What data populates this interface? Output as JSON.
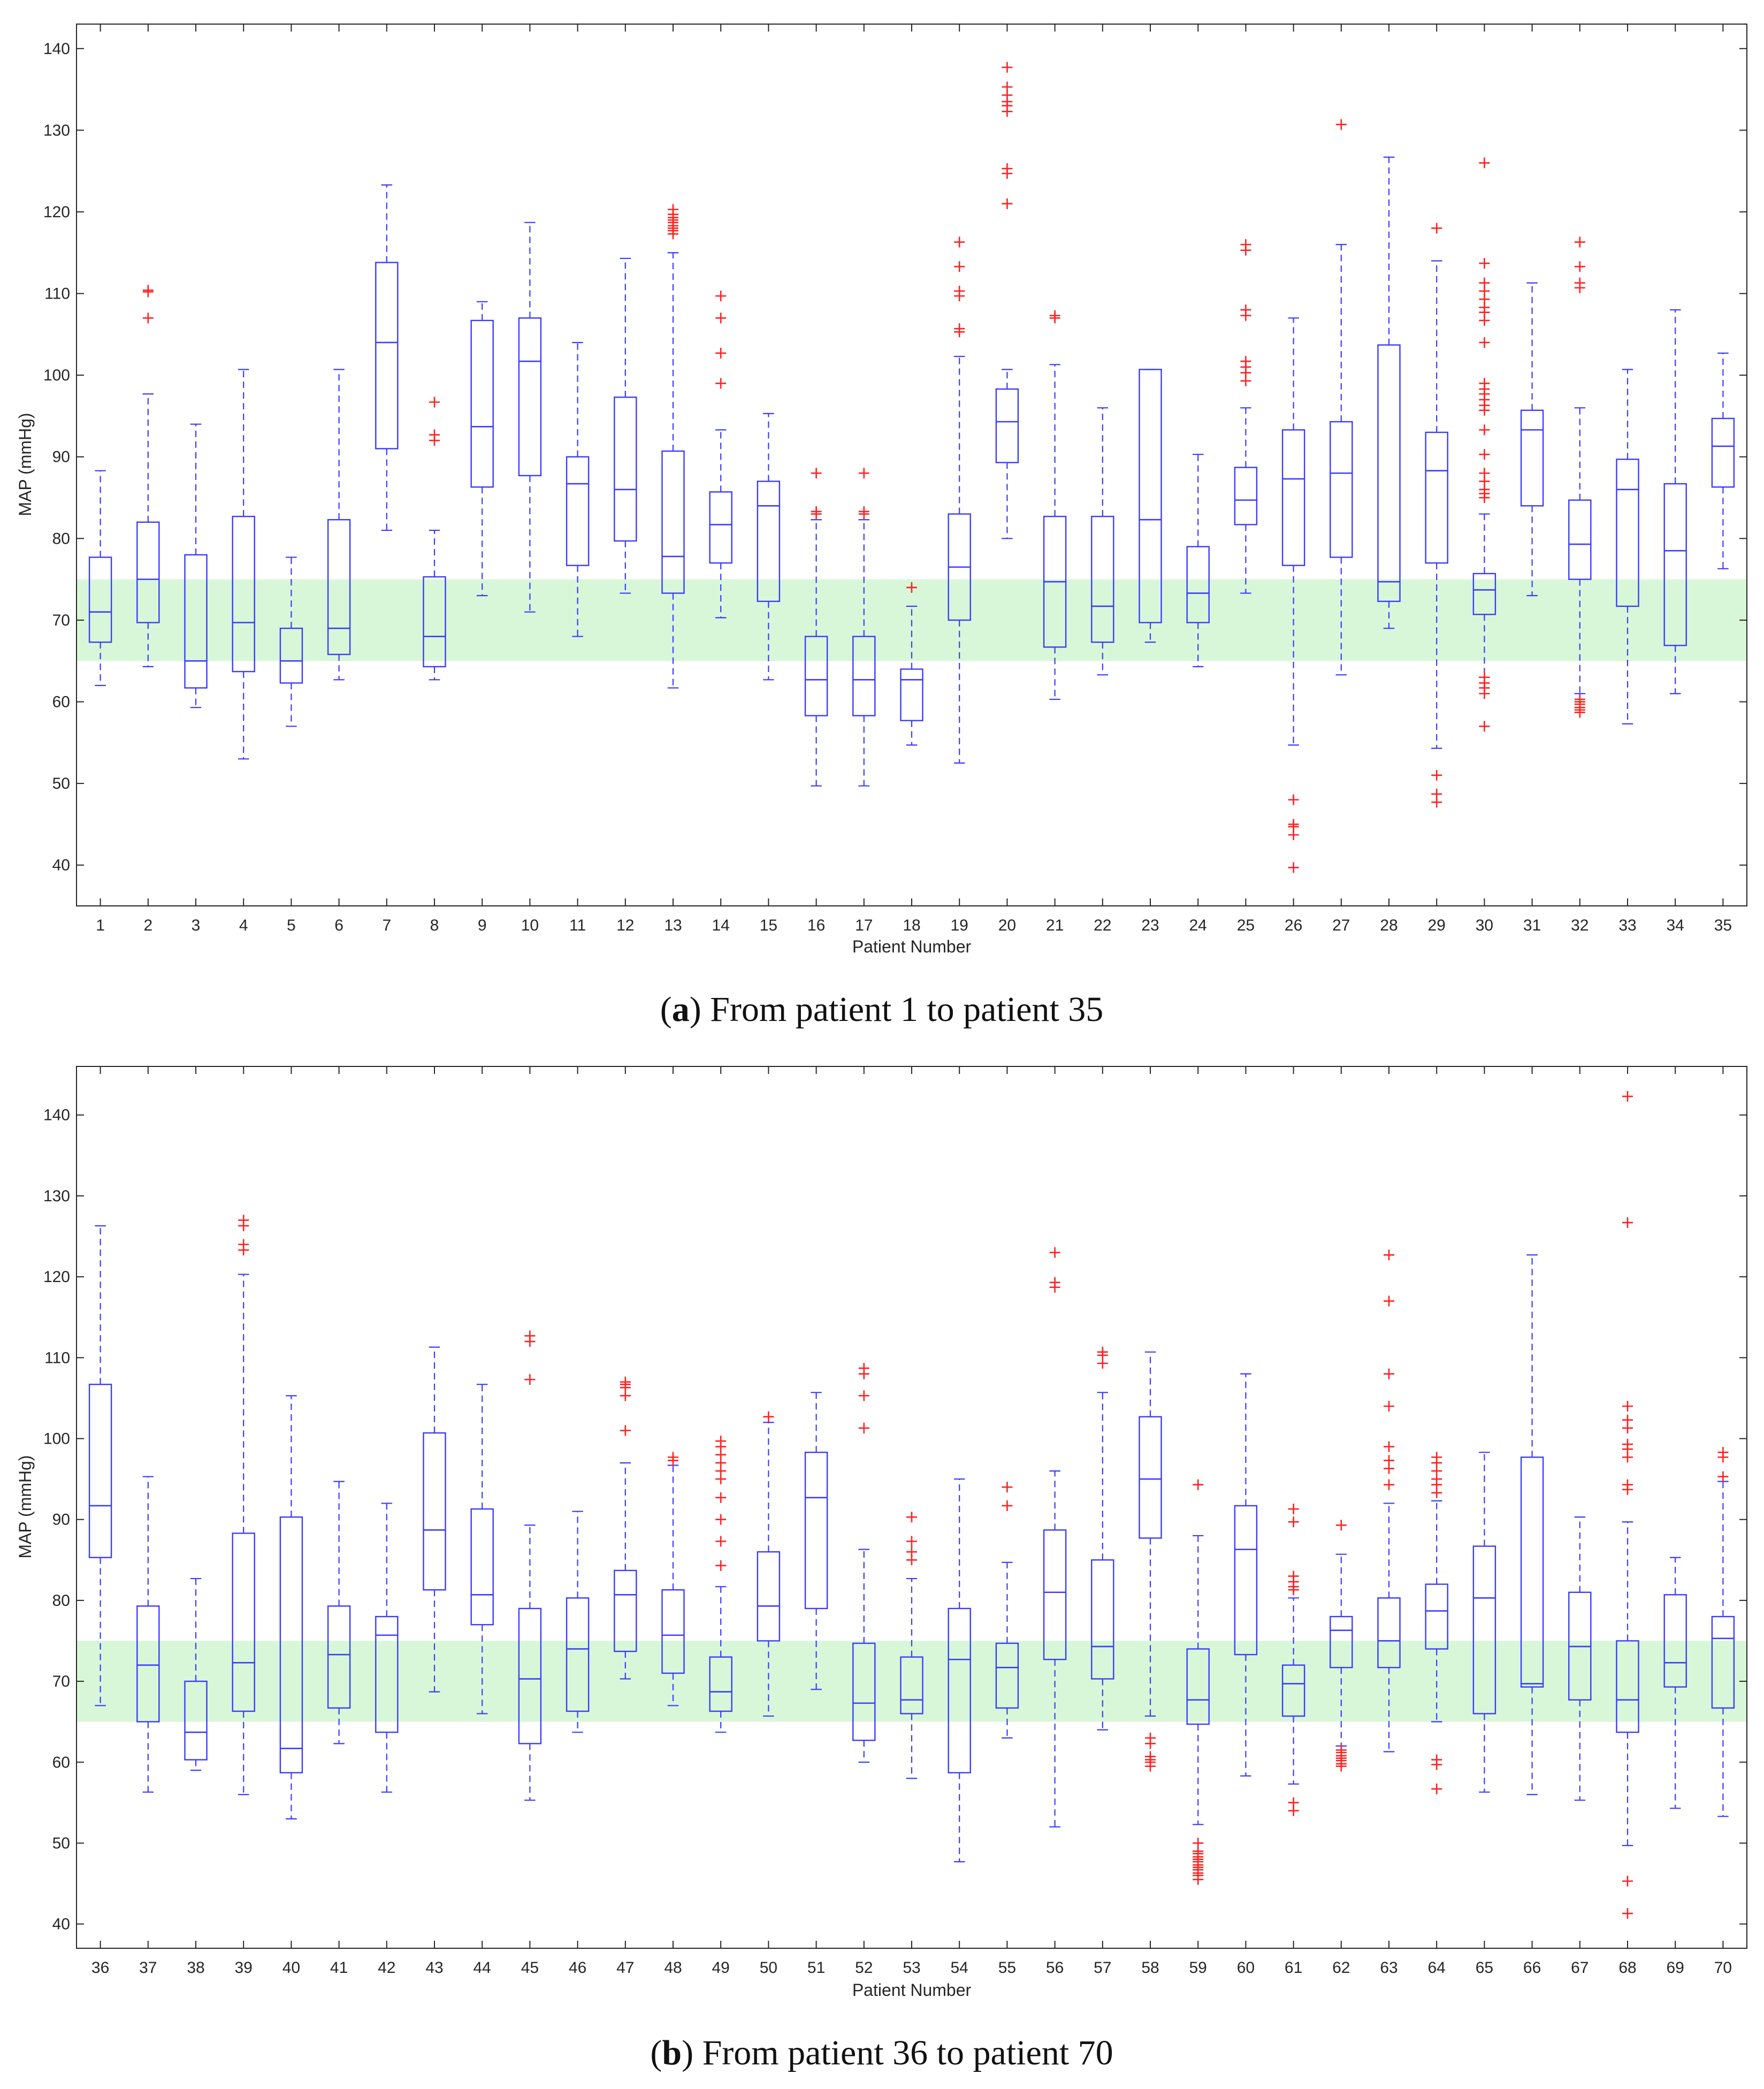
{
  "chart_data": [
    {
      "type": "boxplot",
      "caption_letter": "a",
      "caption_text": "From patient 1 to patient 35",
      "xlabel": "Patient Number",
      "ylabel": "MAP (mmHg)",
      "ylim": [
        35,
        143
      ],
      "yticks": [
        40,
        50,
        60,
        70,
        80,
        90,
        100,
        110,
        120,
        130,
        140
      ],
      "target_band": [
        65,
        75
      ],
      "colors": {
        "box": "#3b3bff",
        "outlier": "#ff2020",
        "band": "#d8f7d8",
        "axis": "#262626"
      },
      "boxes": [
        {
          "label": "1",
          "lo": 62,
          "q1": 67.3,
          "med": 71,
          "q3": 77.7,
          "hi": 88.3,
          "outliers": []
        },
        {
          "label": "2",
          "lo": 64.3,
          "q1": 69.7,
          "med": 75,
          "q3": 82,
          "hi": 97.7,
          "outliers": [
            107,
            110.2,
            110.4
          ]
        },
        {
          "label": "3",
          "lo": 59.3,
          "q1": 61.7,
          "med": 65,
          "q3": 78,
          "hi": 94,
          "outliers": []
        },
        {
          "label": "4",
          "lo": 53,
          "q1": 63.7,
          "med": 69.7,
          "q3": 82.7,
          "hi": 100.7,
          "outliers": []
        },
        {
          "label": "5",
          "lo": 57,
          "q1": 62.3,
          "med": 65,
          "q3": 69,
          "hi": 77.7,
          "outliers": []
        },
        {
          "label": "6",
          "lo": 62.7,
          "q1": 65.8,
          "med": 69,
          "q3": 82.3,
          "hi": 100.7,
          "outliers": []
        },
        {
          "label": "7",
          "lo": 81,
          "q1": 91,
          "med": 104,
          "q3": 113.8,
          "hi": 123.3,
          "outliers": []
        },
        {
          "label": "8",
          "lo": 62.7,
          "q1": 64.3,
          "med": 68,
          "q3": 75.3,
          "hi": 81,
          "outliers": [
            92,
            92.7,
            96.7
          ]
        },
        {
          "label": "9",
          "lo": 73,
          "q1": 86.3,
          "med": 93.7,
          "q3": 106.7,
          "hi": 109,
          "outliers": []
        },
        {
          "label": "10",
          "lo": 71,
          "q1": 87.7,
          "med": 101.7,
          "q3": 107,
          "hi": 118.7,
          "outliers": []
        },
        {
          "label": "11",
          "lo": 68,
          "q1": 76.7,
          "med": 86.7,
          "q3": 90,
          "hi": 104,
          "outliers": []
        },
        {
          "label": "12",
          "lo": 73.3,
          "q1": 79.7,
          "med": 86,
          "q3": 97.3,
          "hi": 114.3,
          "outliers": []
        },
        {
          "label": "13",
          "lo": 61.7,
          "q1": 73.3,
          "med": 77.8,
          "q3": 90.7,
          "hi": 115,
          "outliers": [
            117.3,
            117.7,
            118,
            118.3,
            118.7,
            119,
            119.3,
            119.7,
            120.3
          ]
        },
        {
          "label": "14",
          "lo": 70.3,
          "q1": 77,
          "med": 81.7,
          "q3": 85.7,
          "hi": 93.3,
          "outliers": [
            99,
            102.7,
            107,
            109.7
          ]
        },
        {
          "label": "15",
          "lo": 62.7,
          "q1": 72.3,
          "med": 84,
          "q3": 87,
          "hi": 95.3,
          "outliers": []
        },
        {
          "label": "16",
          "lo": 49.7,
          "q1": 58.3,
          "med": 62.7,
          "q3": 68,
          "hi": 82.3,
          "outliers": [
            83,
            83.3,
            88
          ]
        },
        {
          "label": "17",
          "lo": 49.7,
          "q1": 58.3,
          "med": 62.7,
          "q3": 68,
          "hi": 82.3,
          "outliers": [
            83,
            83.3,
            88
          ]
        },
        {
          "label": "18",
          "lo": 54.7,
          "q1": 57.7,
          "med": 62.7,
          "q3": 64,
          "hi": 71.7,
          "outliers": [
            74
          ]
        },
        {
          "label": "19",
          "lo": 52.5,
          "q1": 70,
          "med": 76.5,
          "q3": 83,
          "hi": 102.3,
          "outliers": [
            105.3,
            105.7,
            109.7,
            110.3,
            113.3,
            116.3
          ]
        },
        {
          "label": "20",
          "lo": 80,
          "q1": 89.3,
          "med": 94.3,
          "q3": 98.3,
          "hi": 100.7,
          "outliers": [
            121,
            124.7,
            125.3,
            132.3,
            133,
            133.5,
            134.3,
            135.3,
            137.7
          ]
        },
        {
          "label": "21",
          "lo": 60.3,
          "q1": 66.7,
          "med": 74.7,
          "q3": 82.7,
          "hi": 101.3,
          "outliers": [
            107,
            107.3
          ]
        },
        {
          "label": "22",
          "lo": 63.3,
          "q1": 67.3,
          "med": 71.7,
          "q3": 82.7,
          "hi": 96,
          "outliers": []
        },
        {
          "label": "23",
          "lo": 67.3,
          "q1": 69.7,
          "med": 82.3,
          "q3": 100.7,
          "hi": 100.7,
          "outliers": []
        },
        {
          "label": "24",
          "lo": 64.3,
          "q1": 69.7,
          "med": 73.3,
          "q3": 79,
          "hi": 90.3,
          "outliers": []
        },
        {
          "label": "25",
          "lo": 73.3,
          "q1": 81.7,
          "med": 84.7,
          "q3": 88.7,
          "hi": 96,
          "outliers": [
            99.3,
            100.3,
            101,
            101.7,
            107.3,
            108,
            115.3,
            116
          ]
        },
        {
          "label": "26",
          "lo": 54.7,
          "q1": 76.7,
          "med": 87.3,
          "q3": 93.3,
          "hi": 107,
          "outliers": [
            39.7,
            43.7,
            44.7,
            45,
            48
          ]
        },
        {
          "label": "27",
          "lo": 63.3,
          "q1": 77.7,
          "med": 88,
          "q3": 94.3,
          "hi": 116,
          "outliers": [
            130.7
          ]
        },
        {
          "label": "28",
          "lo": 69,
          "q1": 72.3,
          "med": 74.7,
          "q3": 103.7,
          "hi": 126.7,
          "outliers": []
        },
        {
          "label": "29",
          "lo": 54.3,
          "q1": 77,
          "med": 88.3,
          "q3": 93,
          "hi": 114,
          "outliers": [
            47.7,
            48.7,
            51,
            118
          ]
        },
        {
          "label": "30",
          "lo": 63,
          "q1": 70.7,
          "med": 73.7,
          "q3": 75.7,
          "hi": 83,
          "outliers": [
            57,
            61,
            61.7,
            62.3,
            63,
            85,
            85.5,
            86,
            87,
            88,
            90.3,
            93.3,
            95.7,
            96.3,
            97,
            97.7,
            98.3,
            99,
            104,
            106.7,
            107.7,
            108.3,
            109.3,
            110.3,
            111.3,
            113.7,
            126
          ]
        },
        {
          "label": "31",
          "lo": 73,
          "q1": 84,
          "med": 93.3,
          "q3": 95.7,
          "hi": 111.3,
          "outliers": []
        },
        {
          "label": "32",
          "lo": 61,
          "q1": 75,
          "med": 79.3,
          "q3": 84.7,
          "hi": 96,
          "outliers": [
            58.7,
            59,
            59.3,
            59.7,
            60,
            60.3,
            110.7,
            111.3,
            113.3,
            116.3
          ]
        },
        {
          "label": "33",
          "lo": 57.3,
          "q1": 71.7,
          "med": 86,
          "q3": 89.7,
          "hi": 100.7,
          "outliers": []
        },
        {
          "label": "34",
          "lo": 61,
          "q1": 66.9,
          "med": 78.5,
          "q3": 86.7,
          "hi": 108,
          "outliers": []
        },
        {
          "label": "35",
          "lo": 76.3,
          "q1": 86.3,
          "med": 91.3,
          "q3": 94.7,
          "hi": 102.7,
          "outliers": []
        }
      ]
    },
    {
      "type": "boxplot",
      "caption_letter": "b",
      "caption_text": "From patient 36 to patient 70",
      "xlabel": "Patient Number",
      "ylabel": "MAP (mmHg)",
      "ylim": [
        37,
        146
      ],
      "yticks": [
        40,
        50,
        60,
        70,
        80,
        90,
        100,
        110,
        120,
        130,
        140
      ],
      "target_band": [
        65,
        75
      ],
      "colors": {
        "box": "#3b3bff",
        "outlier": "#ff2020",
        "band": "#d8f7d8",
        "axis": "#262626"
      },
      "boxes": [
        {
          "label": "36",
          "lo": 67,
          "q1": 85.3,
          "med": 91.7,
          "q3": 106.7,
          "hi": 126.3,
          "outliers": []
        },
        {
          "label": "37",
          "lo": 56.3,
          "q1": 65,
          "med": 72,
          "q3": 79.3,
          "hi": 95.3,
          "outliers": []
        },
        {
          "label": "38",
          "lo": 59,
          "q1": 60.3,
          "med": 63.7,
          "q3": 70,
          "hi": 82.7,
          "outliers": []
        },
        {
          "label": "39",
          "lo": 56,
          "q1": 66.3,
          "med": 72.3,
          "q3": 88.3,
          "hi": 120.3,
          "outliers": [
            123.3,
            124,
            126.3,
            127
          ]
        },
        {
          "label": "40",
          "lo": 53,
          "q1": 58.7,
          "med": 61.7,
          "q3": 90.3,
          "hi": 105.3,
          "outliers": []
        },
        {
          "label": "41",
          "lo": 62.3,
          "q1": 66.7,
          "med": 73.3,
          "q3": 79.3,
          "hi": 94.7,
          "outliers": []
        },
        {
          "label": "42",
          "lo": 56.3,
          "q1": 63.7,
          "med": 75.7,
          "q3": 78,
          "hi": 92,
          "outliers": []
        },
        {
          "label": "43",
          "lo": 68.7,
          "q1": 81.3,
          "med": 88.7,
          "q3": 100.7,
          "hi": 111.3,
          "outliers": []
        },
        {
          "label": "44",
          "lo": 66,
          "q1": 77,
          "med": 80.7,
          "q3": 91.3,
          "hi": 106.7,
          "outliers": []
        },
        {
          "label": "45",
          "lo": 55.3,
          "q1": 62.3,
          "med": 70.3,
          "q3": 79,
          "hi": 89.3,
          "outliers": [
            107.3,
            112,
            112.7
          ]
        },
        {
          "label": "46",
          "lo": 63.7,
          "q1": 66.3,
          "med": 74,
          "q3": 80.3,
          "hi": 91,
          "outliers": []
        },
        {
          "label": "47",
          "lo": 70.3,
          "q1": 73.7,
          "med": 80.7,
          "q3": 83.7,
          "hi": 97,
          "outliers": [
            101,
            105.3,
            106.3,
            106.7,
            107
          ]
        },
        {
          "label": "48",
          "lo": 67,
          "q1": 71,
          "med": 75.7,
          "q3": 81.3,
          "hi": 96.7,
          "outliers": [
            97.3,
            97.7
          ]
        },
        {
          "label": "49",
          "lo": 63.7,
          "q1": 66.3,
          "med": 68.7,
          "q3": 73,
          "hi": 81.7,
          "outliers": [
            84.3,
            87.3,
            90,
            92.7,
            95,
            96,
            97,
            98,
            99,
            99.7
          ]
        },
        {
          "label": "50",
          "lo": 65.7,
          "q1": 75,
          "med": 79.3,
          "q3": 86,
          "hi": 102,
          "outliers": [
            102.7
          ]
        },
        {
          "label": "51",
          "lo": 69,
          "q1": 79,
          "med": 92.7,
          "q3": 98.3,
          "hi": 105.7,
          "outliers": []
        },
        {
          "label": "52",
          "lo": 60,
          "q1": 62.7,
          "med": 67.3,
          "q3": 74.7,
          "hi": 86.3,
          "outliers": [
            101.3,
            105.3,
            108,
            108.7
          ]
        },
        {
          "label": "53",
          "lo": 58,
          "q1": 66,
          "med": 67.7,
          "q3": 73,
          "hi": 82.7,
          "outliers": [
            85,
            86,
            87.3,
            90.3
          ]
        },
        {
          "label": "54",
          "lo": 47.7,
          "q1": 58.7,
          "med": 72.7,
          "q3": 79,
          "hi": 95,
          "outliers": []
        },
        {
          "label": "55",
          "lo": 63,
          "q1": 66.7,
          "med": 71.7,
          "q3": 74.7,
          "hi": 84.7,
          "outliers": [
            91.7,
            94
          ]
        },
        {
          "label": "56",
          "lo": 52,
          "q1": 72.7,
          "med": 81,
          "q3": 88.7,
          "hi": 96,
          "outliers": [
            118.7,
            119.3,
            123
          ]
        },
        {
          "label": "57",
          "lo": 64,
          "q1": 70.3,
          "med": 74.3,
          "q3": 85,
          "hi": 105.7,
          "outliers": [
            109.3,
            110.3,
            110.7
          ]
        },
        {
          "label": "58",
          "lo": 65.7,
          "q1": 87.7,
          "med": 95,
          "q3": 102.7,
          "hi": 110.7,
          "outliers": [
            59.5,
            60,
            60.3,
            60.7,
            62.3,
            63
          ]
        },
        {
          "label": "59",
          "lo": 52.3,
          "q1": 64.7,
          "med": 67.7,
          "q3": 74,
          "hi": 88,
          "outliers": [
            45.5,
            46,
            46.3,
            46.7,
            47,
            47.3,
            47.7,
            48,
            48.3,
            48.7,
            49,
            50,
            94.3
          ]
        },
        {
          "label": "60",
          "lo": 58.3,
          "q1": 73.3,
          "med": 86.3,
          "q3": 91.7,
          "hi": 108,
          "outliers": []
        },
        {
          "label": "61",
          "lo": 57.3,
          "q1": 65.7,
          "med": 69.7,
          "q3": 72,
          "hi": 80.3,
          "outliers": [
            54,
            55,
            81.3,
            81.7,
            82.3,
            83,
            89.7,
            91.3
          ]
        },
        {
          "label": "62",
          "lo": 62,
          "q1": 71.7,
          "med": 76.3,
          "q3": 78,
          "hi": 85.7,
          "outliers": [
            59.5,
            59.8,
            60.2,
            60.5,
            60.8,
            61.2,
            61.5,
            89.3
          ]
        },
        {
          "label": "63",
          "lo": 61.3,
          "q1": 71.7,
          "med": 75,
          "q3": 80.3,
          "hi": 92,
          "outliers": [
            94.3,
            96.3,
            97.3,
            99,
            104,
            108,
            117,
            122.7
          ]
        },
        {
          "label": "64",
          "lo": 65,
          "q1": 74,
          "med": 78.7,
          "q3": 82,
          "hi": 92.3,
          "outliers": [
            56.7,
            59.7,
            60.3,
            93.3,
            94.3,
            95,
            96,
            97,
            97.7
          ]
        },
        {
          "label": "65",
          "lo": 56.3,
          "q1": 66,
          "med": 80.3,
          "q3": 86.7,
          "hi": 98.3,
          "outliers": []
        },
        {
          "label": "66",
          "lo": 56,
          "q1": 69.3,
          "med": 69.7,
          "q3": 97.7,
          "hi": 122.7,
          "outliers": []
        },
        {
          "label": "67",
          "lo": 55.3,
          "q1": 67.7,
          "med": 74.3,
          "q3": 81,
          "hi": 90.3,
          "outliers": []
        },
        {
          "label": "68",
          "lo": 49.7,
          "q1": 63.7,
          "med": 67.7,
          "q3": 75,
          "hi": 89.7,
          "outliers": [
            41.3,
            45.3,
            93.7,
            94.3,
            97.7,
            98.7,
            99.3,
            101.3,
            102.3,
            104,
            126.7,
            142.3
          ]
        },
        {
          "label": "69",
          "lo": 54.3,
          "q1": 69.3,
          "med": 72.3,
          "q3": 80.7,
          "hi": 85.3,
          "outliers": []
        },
        {
          "label": "70",
          "lo": 53.3,
          "q1": 66.7,
          "med": 75.3,
          "q3": 78,
          "hi": 94.7,
          "outliers": [
            95.3,
            97.7,
            98.3
          ]
        }
      ]
    }
  ]
}
